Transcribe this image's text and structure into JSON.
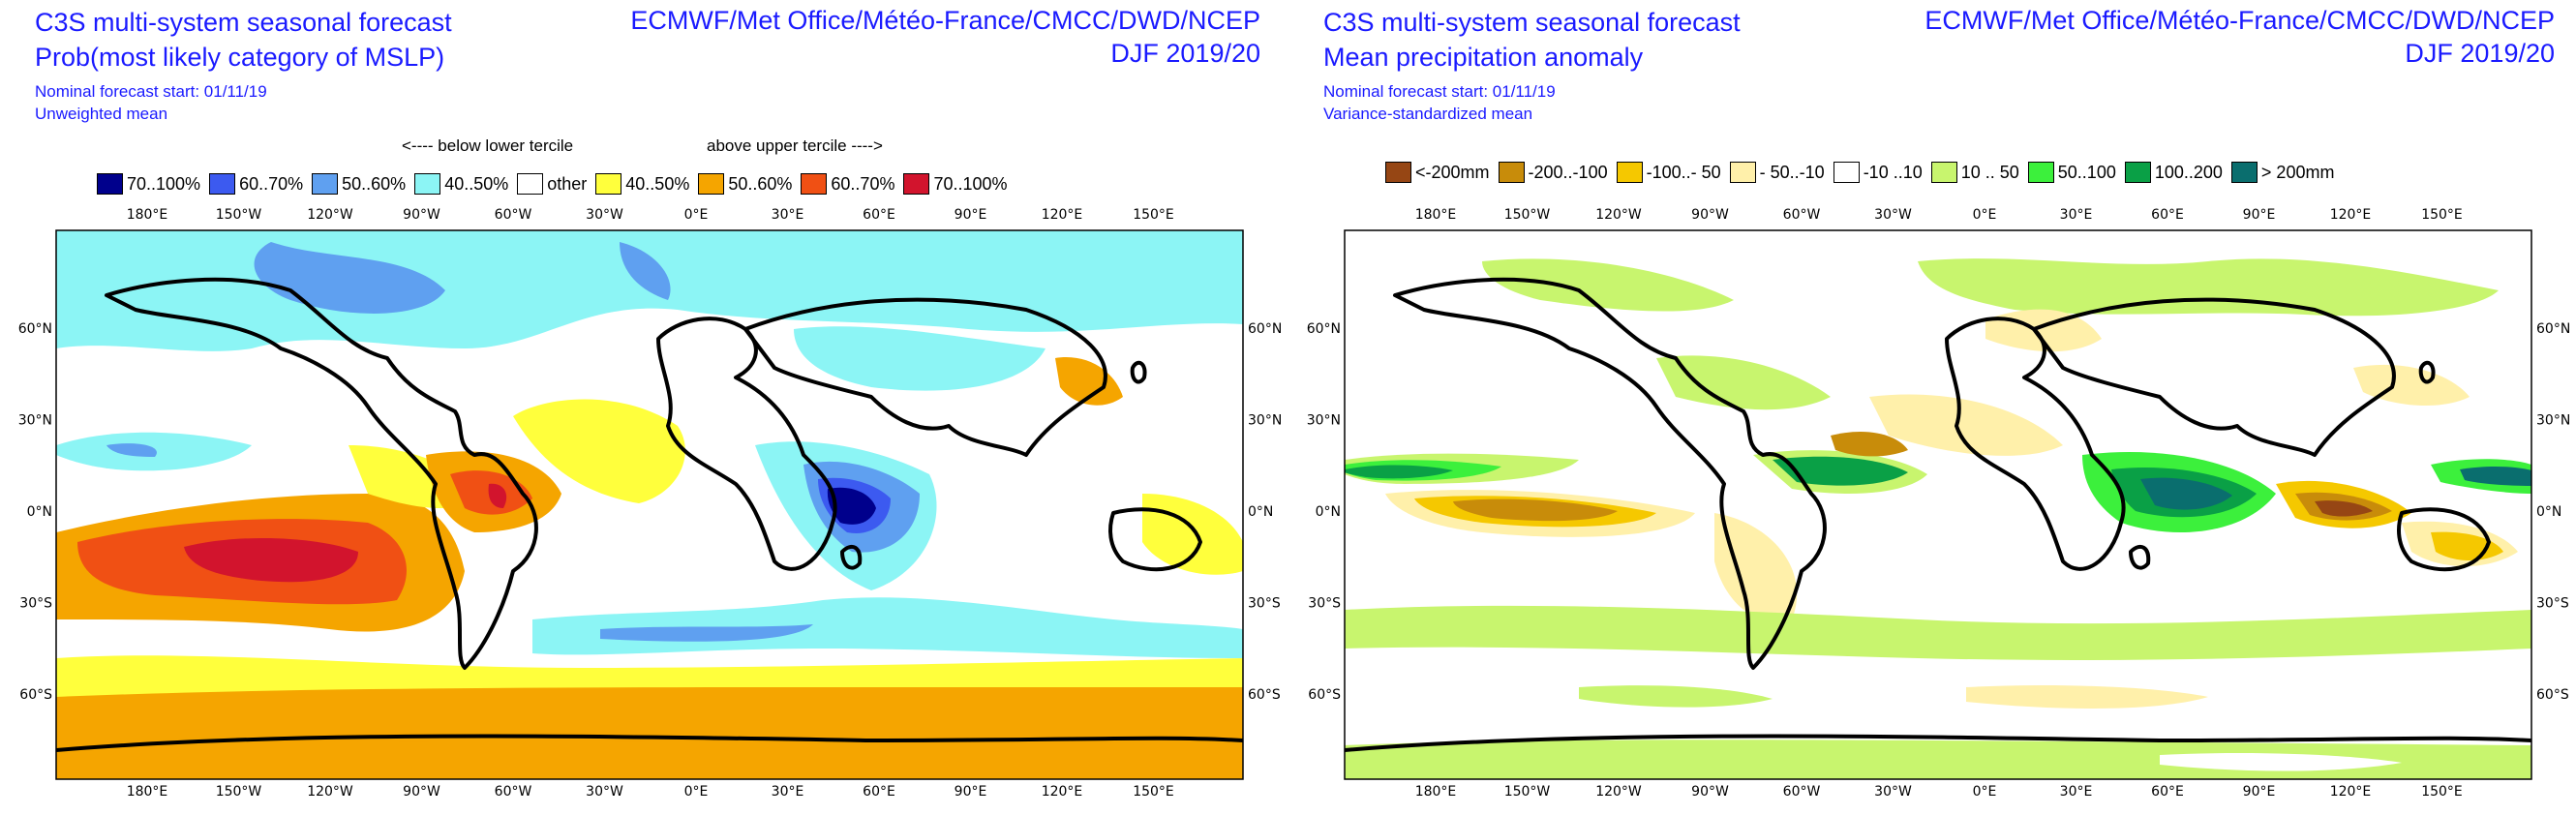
{
  "panels": [
    {
      "title": "C3S multi-system seasonal forecast",
      "subtitle": "Prob(most likely category of MSLP)",
      "nominal_start": "Nominal forecast start: 01/11/19",
      "mean_type": "Unweighted mean",
      "centres": "ECMWF/Met Office/Météo-France/CMCC/DWD/NCEP",
      "season": "DJF 2019/20",
      "tercile_below": "<---- below lower tercile",
      "tercile_above": "above upper tercile ---->",
      "legend": [
        {
          "label": "70..100%",
          "color": "#00008c"
        },
        {
          "label": "60..70%",
          "color": "#3c5af0"
        },
        {
          "label": "50..60%",
          "color": "#5fa0f0"
        },
        {
          "label": "40..50%",
          "color": "#8cf5f5"
        },
        {
          "label": "other",
          "color": "#ffffff"
        },
        {
          "label": "40..50%",
          "color": "#ffff3c"
        },
        {
          "label": "50..60%",
          "color": "#f5a500"
        },
        {
          "label": "60..70%",
          "color": "#f05014"
        },
        {
          "label": "70..100%",
          "color": "#d2142d"
        }
      ]
    },
    {
      "title": "C3S multi-system seasonal forecast",
      "subtitle": "Mean precipitation anomaly",
      "nominal_start": "Nominal forecast start: 01/11/19",
      "mean_type": "Variance-standardized mean",
      "centres": "ECMWF/Met Office/Météo-France/CMCC/DWD/NCEP",
      "season": "DJF 2019/20",
      "legend": [
        {
          "label": "<-200mm",
          "color": "#964614"
        },
        {
          "label": "-200..-100",
          "color": "#c88c0a"
        },
        {
          "label": "-100..- 50",
          "color": "#f5c800"
        },
        {
          "label": "- 50..-10",
          "color": "#fff0aa"
        },
        {
          "label": "-10 ..10",
          "color": "#ffffff"
        },
        {
          "label": "10 .. 50",
          "color": "#c8f56e"
        },
        {
          "label": "50..100",
          "color": "#3cf03c"
        },
        {
          "label": "100..200",
          "color": "#0aa046"
        },
        {
          "label": "> 200mm",
          "color": "#0a6e6e"
        }
      ]
    }
  ],
  "lon_labels": [
    "180°E",
    "150°W",
    "120°W",
    "90°W",
    "60°W",
    "30°W",
    "0°E",
    "30°E",
    "60°E",
    "90°E",
    "120°E",
    "150°E"
  ],
  "lat_labels": [
    "60°N",
    "30°N",
    "0°N",
    "30°S",
    "60°S"
  ]
}
